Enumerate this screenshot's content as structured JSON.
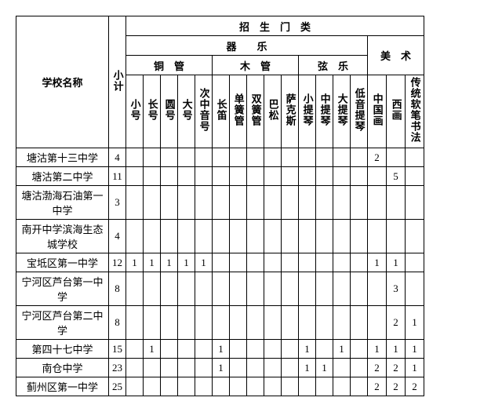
{
  "headers": {
    "school": "学校名称",
    "subtotal": "小计",
    "enroll_cat": "招　生　门　类",
    "instrumental": "器　　乐",
    "fine_art": "美　术",
    "brass": "铜　管",
    "woodwind": "木　管",
    "strings": "弦　乐",
    "instruments": {
      "trumpet": "小号",
      "trombone": "长号",
      "horn": "圆号",
      "tuba": "大号",
      "euphonium": "次中音号",
      "flute": "长笛",
      "clarinet": "单簧管",
      "oboe": "双簧管",
      "bassoon": "巴松",
      "sax": "萨克斯",
      "violin": "小提琴",
      "viola": "中提琴",
      "cello": "大提琴",
      "bass": "低音提琴"
    },
    "art": {
      "chinese": "中国画",
      "western": "西画",
      "calligraphy": "传统软笔书法"
    }
  },
  "rows": [
    {
      "school": "塘沽第十三中学",
      "subtotal": "4",
      "c": [
        "",
        "",
        "",
        "",
        "",
        "",
        "",
        "",
        "",
        "",
        "",
        "",
        "",
        "",
        "2",
        "",
        ""
      ]
    },
    {
      "school": "塘沽第二中学",
      "subtotal": "11",
      "c": [
        "",
        "",
        "",
        "",
        "",
        "",
        "",
        "",
        "",
        "",
        "",
        "",
        "",
        "",
        "",
        "5",
        ""
      ]
    },
    {
      "school": "塘沽渤海石油第一中学",
      "subtotal": "3",
      "c": [
        "",
        "",
        "",
        "",
        "",
        "",
        "",
        "",
        "",
        "",
        "",
        "",
        "",
        "",
        "",
        "",
        ""
      ]
    },
    {
      "school": "南开中学滨海生态城学校",
      "subtotal": "4",
      "c": [
        "",
        "",
        "",
        "",
        "",
        "",
        "",
        "",
        "",
        "",
        "",
        "",
        "",
        "",
        "",
        "",
        ""
      ]
    },
    {
      "school": "宝坻区第一中学",
      "subtotal": "12",
      "c": [
        "1",
        "1",
        "1",
        "1",
        "1",
        "",
        "",
        "",
        "",
        "",
        "",
        "",
        "",
        "",
        "1",
        "1",
        ""
      ]
    },
    {
      "school": "宁河区芦台第一中学",
      "subtotal": "8",
      "c": [
        "",
        "",
        "",
        "",
        "",
        "",
        "",
        "",
        "",
        "",
        "",
        "",
        "",
        "",
        "",
        "3",
        ""
      ]
    },
    {
      "school": "宁河区芦台第二中学",
      "subtotal": "8",
      "c": [
        "",
        "",
        "",
        "",
        "",
        "",
        "",
        "",
        "",
        "",
        "",
        "",
        "",
        "",
        "",
        "2",
        "1"
      ]
    },
    {
      "school": "第四十七中学",
      "subtotal": "15",
      "c": [
        "",
        "1",
        "",
        "",
        "",
        "1",
        "",
        "",
        "",
        "",
        "1",
        "",
        "1",
        "",
        "1",
        "1",
        "1"
      ]
    },
    {
      "school": "南仓中学",
      "subtotal": "23",
      "c": [
        "",
        "",
        "",
        "",
        "",
        "1",
        "",
        "",
        "",
        "",
        "1",
        "1",
        "",
        "",
        "2",
        "2",
        "1"
      ]
    },
    {
      "school": "蓟州区第一中学",
      "subtotal": "25",
      "c": [
        "",
        "",
        "",
        "",
        "",
        "",
        "",
        "",
        "",
        "",
        "",
        "",
        "",
        "",
        "2",
        "2",
        "2"
      ]
    }
  ]
}
